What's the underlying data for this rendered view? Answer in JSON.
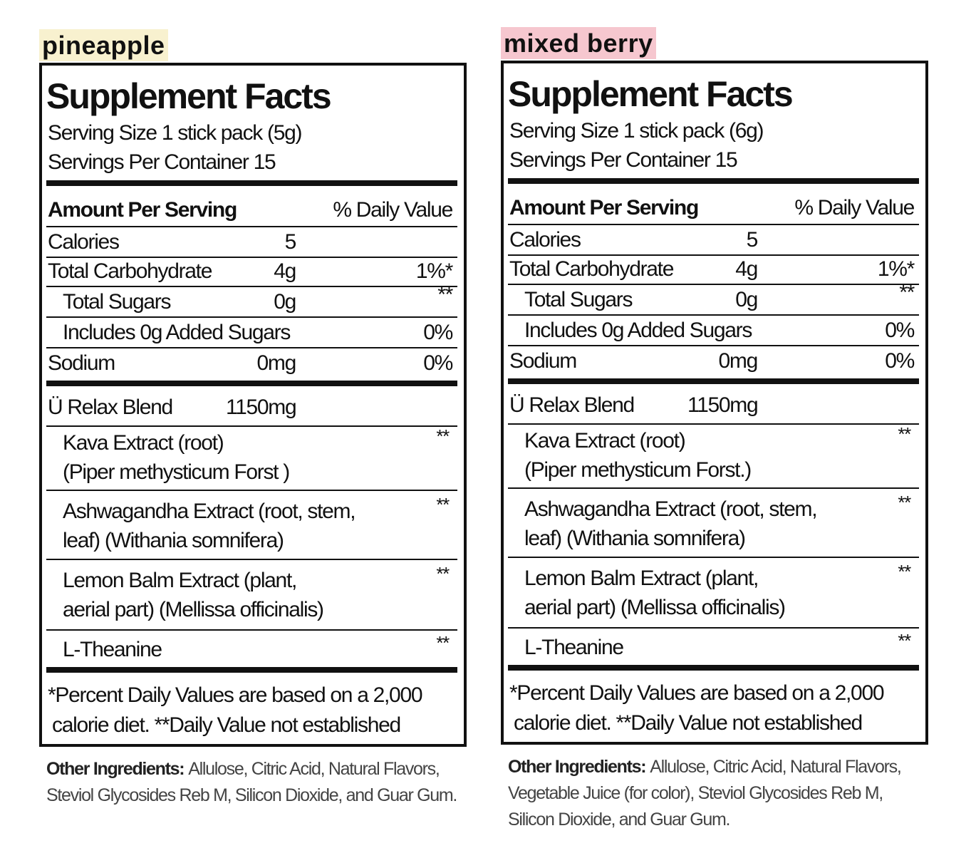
{
  "panels": [
    {
      "label": "pineapple",
      "title": "Supplement Facts",
      "serving_size": "Serving Size 1 stick pack (5g)",
      "servings_per_container": "Servings Per Container 15",
      "column_headers": {
        "amount": "Amount Per Serving",
        "daily_value": "% Daily Value"
      },
      "nutrients": [
        {
          "name": "Calories",
          "amount": "5"
        },
        {
          "name": "Total Carbohydrate",
          "amount": "4g",
          "daily_value": "1%*"
        },
        {
          "name": "Total Sugars",
          "amount": "0g",
          "daily_value": "**"
        },
        {
          "name": "Includes 0g Added Sugars",
          "daily_value": "0%"
        },
        {
          "name": "Sodium",
          "amount": "0mg",
          "daily_value": "0%"
        }
      ],
      "blend": {
        "name": "Ü Relax Blend",
        "amount": "1150mg",
        "ingredients": [
          {
            "lines": [
              "Kava Extract (root)",
              "(Piper methysticum Forst )"
            ],
            "daily_value": "**"
          },
          {
            "lines": [
              "Ashwagandha Extract (root, stem,",
              "leaf) (Withania somnifera)"
            ],
            "daily_value": "**"
          },
          {
            "lines": [
              "Lemon Balm Extract (plant,",
              "aerial part) (Mellissa officinalis)"
            ],
            "daily_value": "**"
          },
          {
            "lines": [
              "L-Theanine"
            ],
            "daily_value": "**"
          }
        ]
      },
      "footnote": [
        "*Percent Daily Values are based on a 2,000",
        "calorie diet. **Daily Value not established"
      ],
      "other_ingredients": {
        "label": "Other Ingredients:",
        "lines": [
          "Allulose, Citric Acid, Natural Flavors,",
          "Steviol Glycosides Reb M, Silicon Dioxide, and Guar Gum."
        ]
      }
    },
    {
      "label": "mixed berry",
      "title": "Supplement Facts",
      "serving_size": "Serving Size 1 stick pack (6g)",
      "servings_per_container": "Servings Per Container 15",
      "column_headers": {
        "amount": "Amount Per Serving",
        "daily_value": "% Daily Value"
      },
      "nutrients": [
        {
          "name": "Calories",
          "amount": "5"
        },
        {
          "name": "Total Carbohydrate",
          "amount": "4g",
          "daily_value": "1%*"
        },
        {
          "name": "Total Sugars",
          "amount": "0g",
          "daily_value": "**"
        },
        {
          "name": "Includes 0g Added Sugars",
          "daily_value": "0%"
        },
        {
          "name": "Sodium",
          "amount": "0mg",
          "daily_value": "0%"
        }
      ],
      "blend": {
        "name": "Ü Relax Blend",
        "amount": "1150mg",
        "ingredients": [
          {
            "lines": [
              "Kava Extract (root)",
              "(Piper methysticum Forst.)"
            ],
            "daily_value": "**"
          },
          {
            "lines": [
              "Ashwagandha Extract (root, stem,",
              "leaf) (Withania somnifera)"
            ],
            "daily_value": "**"
          },
          {
            "lines": [
              "Lemon Balm Extract (plant,",
              "aerial part) (Mellissa officinalis)"
            ],
            "daily_value": "**"
          },
          {
            "lines": [
              "L-Theanine"
            ],
            "daily_value": "**"
          }
        ]
      },
      "footnote": [
        "*Percent Daily Values are based on a 2,000",
        "calorie diet. **Daily Value not established"
      ],
      "other_ingredients": {
        "label": "Other Ingredients:",
        "lines": [
          "Allulose, Citric Acid, Natural Flavors,",
          "Vegetable Juice (for color), Steviol Glycosides Reb M,",
          "Silicon Dioxide, and Guar Gum."
        ]
      }
    }
  ]
}
